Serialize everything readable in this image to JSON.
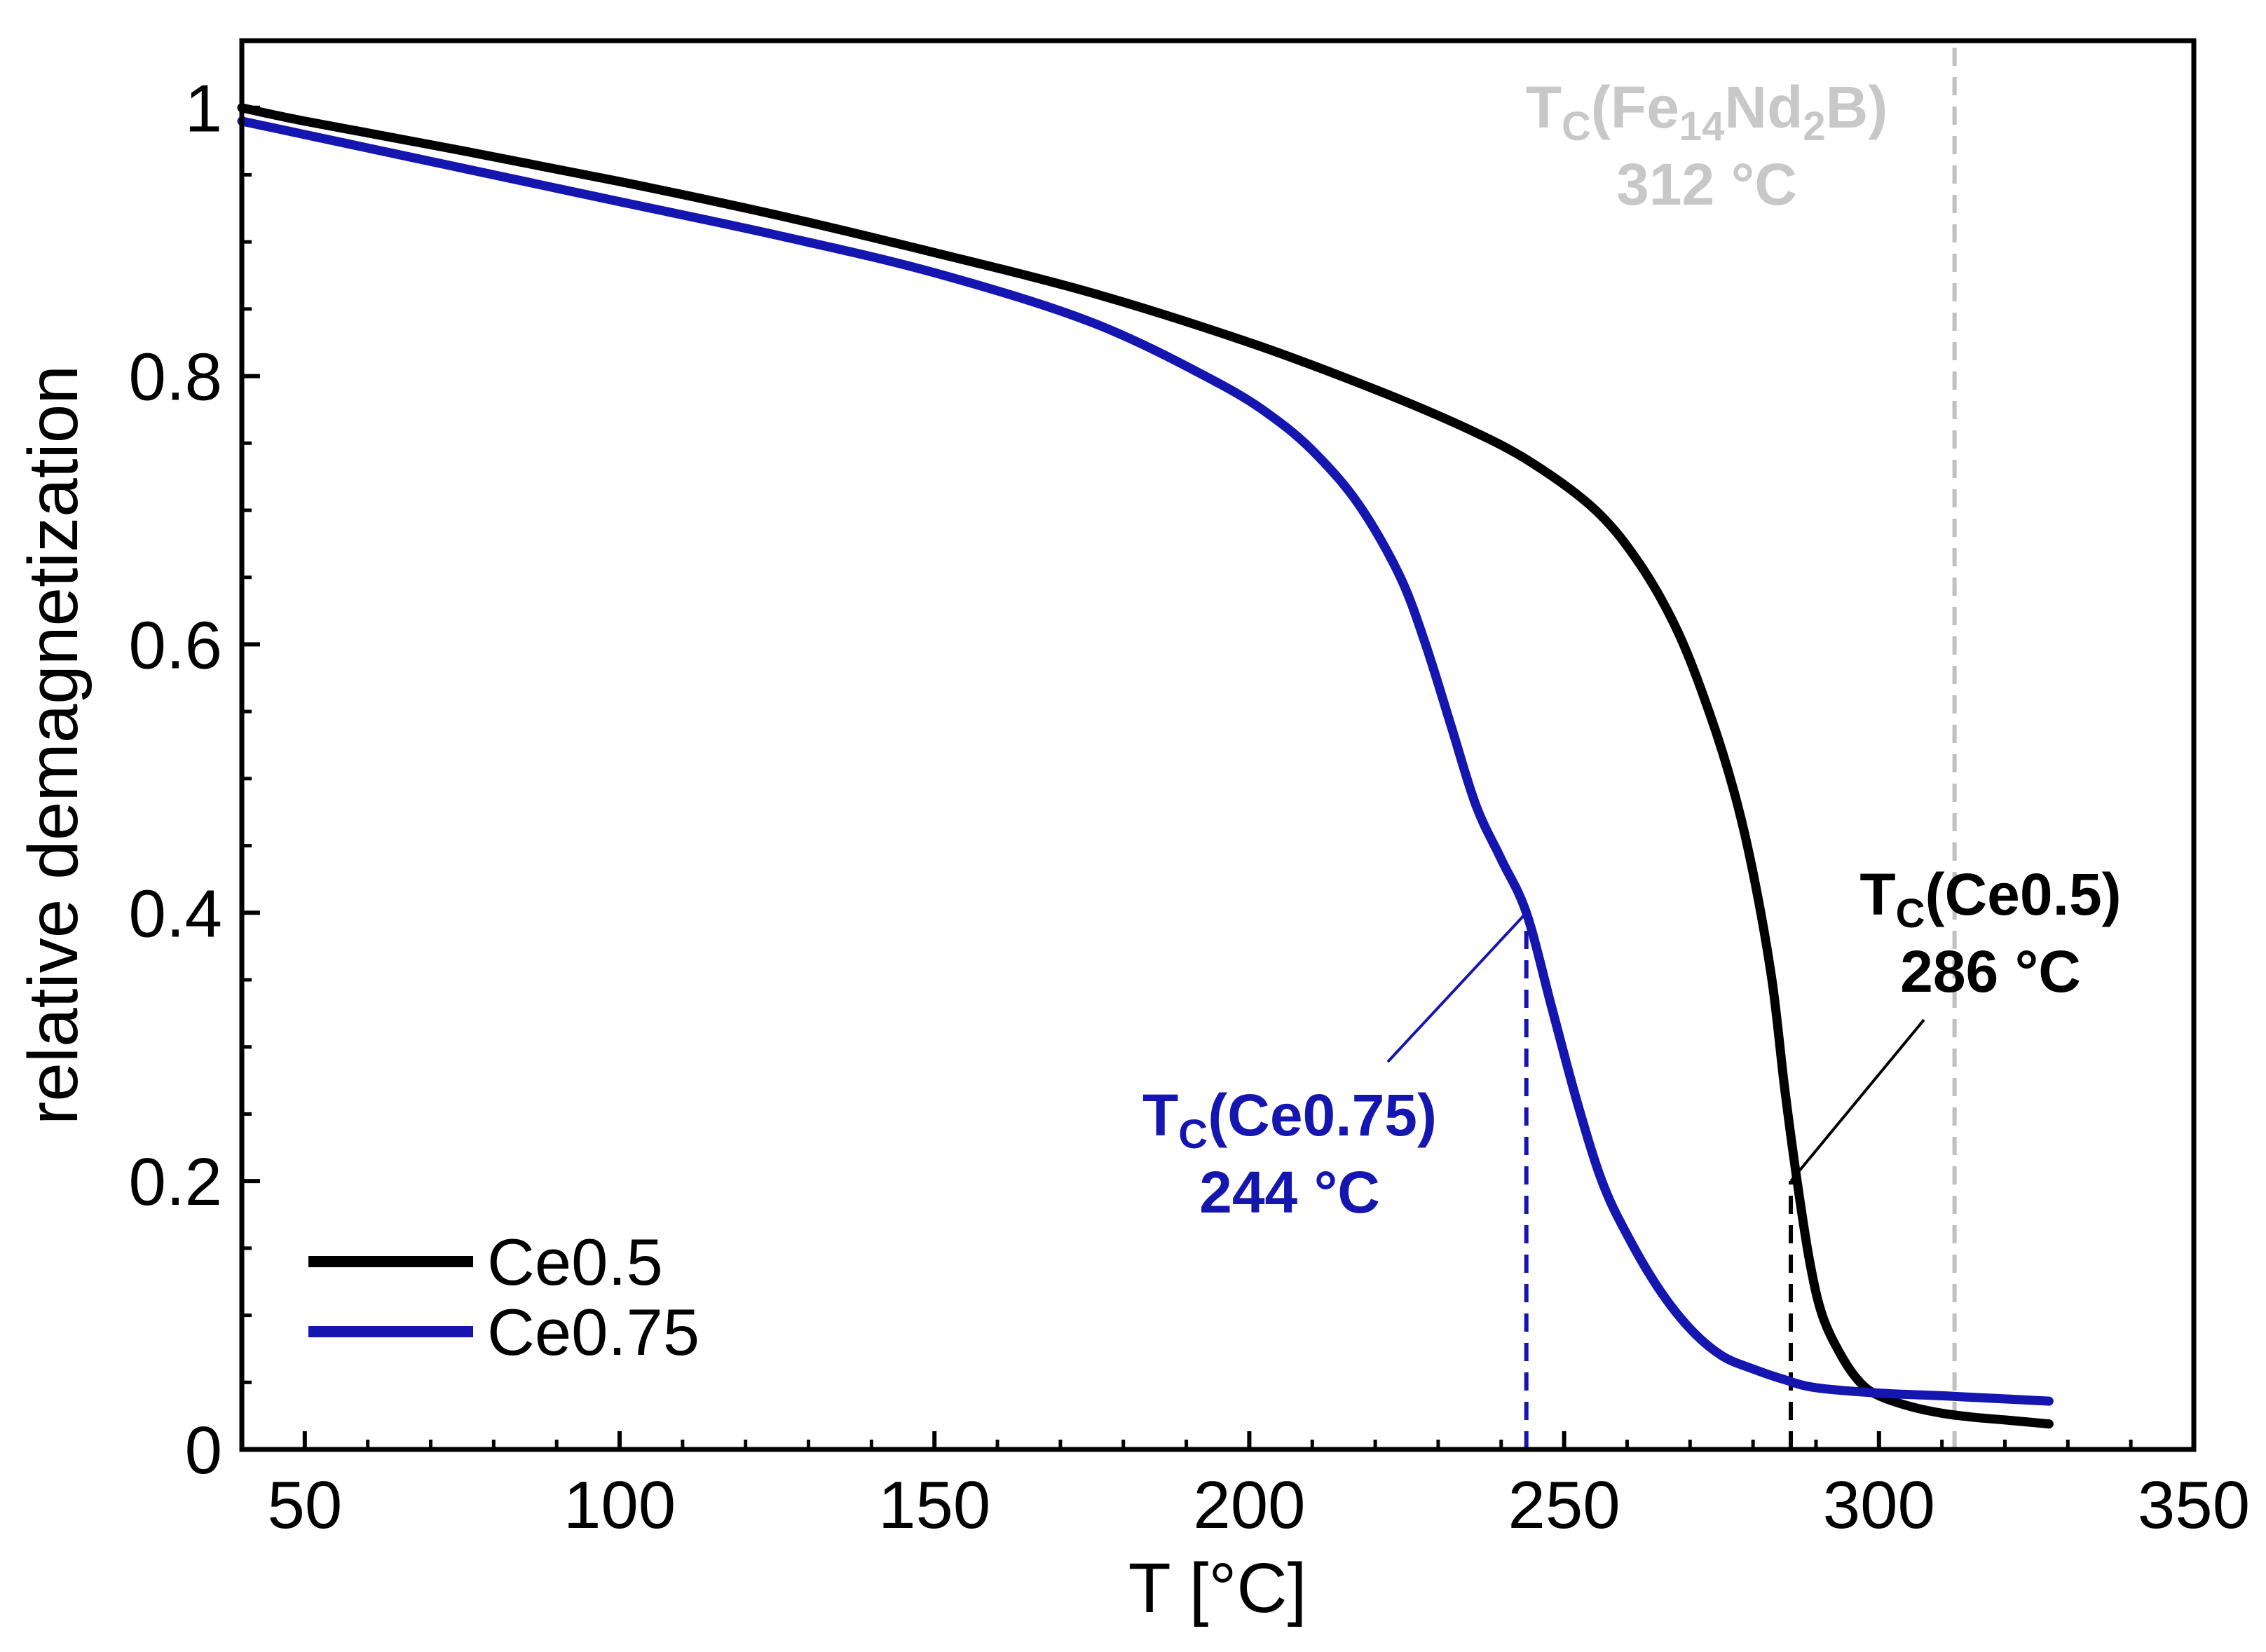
{
  "chart_data": {
    "type": "line",
    "xlabel": "T [°C]",
    "ylabel": "relative demagnetization",
    "xlim": [
      40,
      350
    ],
    "ylim": [
      0,
      1.05
    ],
    "x_ticks": [
      50,
      100,
      150,
      200,
      250,
      300,
      350
    ],
    "y_ticks": [
      0,
      0.2,
      0.4,
      0.6,
      0.8,
      1
    ],
    "y_tick_labels": [
      "0",
      "0.2",
      "0.4",
      "0.6",
      "0.8",
      "1"
    ],
    "x_tick_labels": [
      "50",
      "100",
      "150",
      "200",
      "250",
      "300",
      "350"
    ],
    "legend_position": "bottom-left",
    "series": [
      {
        "name": "Ce0.5",
        "color": "#000000",
        "x": [
          40,
          50,
          75,
          100,
          125,
          150,
          175,
          200,
          220,
          235,
          245,
          255,
          262,
          268,
          273,
          277,
          280,
          283,
          285,
          287,
          289,
          291,
          294,
          297,
          300,
          305,
          310,
          315,
          320,
          327
        ],
        "y": [
          1.0,
          0.99,
          0.968,
          0.945,
          0.92,
          0.892,
          0.862,
          0.825,
          0.79,
          0.76,
          0.735,
          0.7,
          0.66,
          0.61,
          0.55,
          0.49,
          0.43,
          0.35,
          0.27,
          0.2,
          0.14,
          0.1,
          0.07,
          0.05,
          0.04,
          0.032,
          0.027,
          0.024,
          0.022,
          0.019
        ]
      },
      {
        "name": "Ce0.75",
        "color": "#1515b0",
        "x": [
          40,
          50,
          75,
          100,
          125,
          150,
          175,
          195,
          205,
          212,
          218,
          224,
          228,
          232,
          236,
          240,
          244,
          248,
          252,
          256,
          260,
          265,
          270,
          275,
          280,
          285,
          290,
          300,
          310,
          327
        ],
        "y": [
          0.99,
          0.98,
          0.955,
          0.93,
          0.905,
          0.877,
          0.84,
          0.795,
          0.765,
          0.735,
          0.7,
          0.65,
          0.6,
          0.54,
          0.48,
          0.44,
          0.4,
          0.33,
          0.26,
          0.2,
          0.16,
          0.12,
          0.09,
          0.07,
          0.06,
          0.052,
          0.046,
          0.042,
          0.04,
          0.036
        ]
      }
    ],
    "annotations": [
      {
        "id": "fe",
        "base": "T",
        "sub": "C",
        "formula": "(Fe14Nd2B)",
        "value": "312 °C",
        "x": 312,
        "color": "#c0c0c0"
      },
      {
        "id": "ce05",
        "base": "T",
        "sub": "C",
        "formula": "(Ce0.5)",
        "value": "286 °C",
        "x": 286,
        "y_end": 0.2,
        "color": "#000000"
      },
      {
        "id": "ce075",
        "base": "T",
        "sub": "C",
        "formula": "(Ce0.75)",
        "value": "244 °C",
        "x": 244,
        "y_end": 0.4,
        "color": "#1515b0"
      }
    ],
    "legend": [
      {
        "label": "Ce0.5",
        "color": "#000000"
      },
      {
        "label": "Ce0.75",
        "color": "#1515b0"
      }
    ]
  },
  "labels": {
    "fe_title_prefix": "T",
    "fe_title_sub": "C",
    "fe_title_a": "(Fe",
    "fe_title_sub14": "14",
    "fe_title_b": "Nd",
    "fe_title_sub2": "2",
    "fe_title_c": "B)",
    "fe_value": "312 °C",
    "ce05_prefix": "T",
    "ce05_sub": "C",
    "ce05_rest": "(Ce0.5)",
    "ce05_value": "286 °C",
    "ce075_prefix": "T",
    "ce075_sub": "C",
    "ce075_rest": "(Ce0.75)",
    "ce075_value": "244 °C"
  }
}
